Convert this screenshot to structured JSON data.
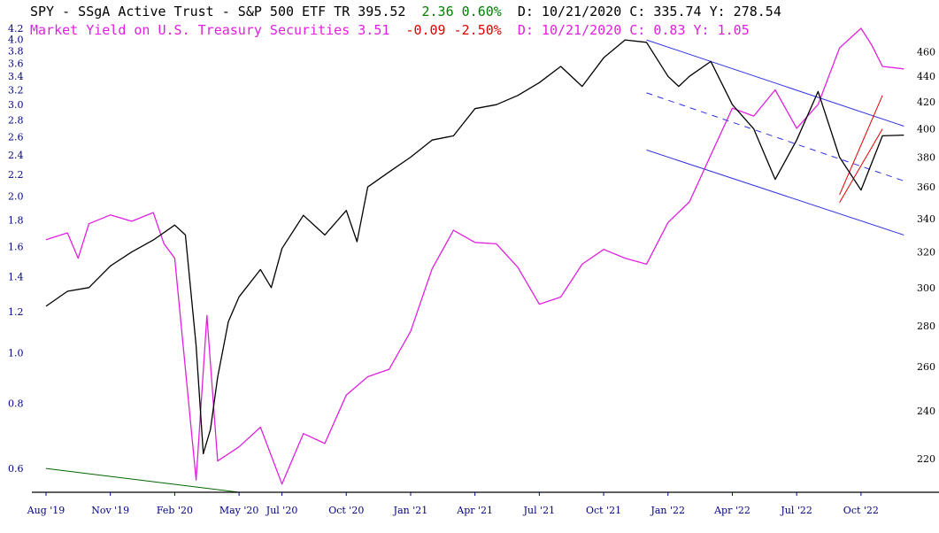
{
  "colors": {
    "spy": "#000000",
    "yield": "#e020e0",
    "gain": "#008000",
    "loss": "#e00000",
    "axis_text": "#000080",
    "channel": "#3030e0",
    "wedge": "#e00000",
    "trendline": "#006400",
    "doji": "#808080"
  },
  "header": {
    "line1": {
      "name": "SPY - SSgA Active Trust - S&P 500 ETF TR 395.52",
      "change": "2.36 0.60%",
      "rest": "D: 10/21/2020 C: 335.74 Y: 278.54"
    },
    "line2": {
      "name": "Market Yield on U.S. Treasury Securities 3.51",
      "change": "-0.09 -2.50%",
      "rest": "D: 10/21/2020 C: 0.83 Y: 1.05"
    }
  },
  "chart_data": {
    "type": "line",
    "x_tick_labels": [
      "Aug '19",
      "Nov '19",
      "Feb '20",
      "May '20",
      "Jul '20",
      "Oct '20",
      "Jan '21",
      "Apr '21",
      "Jul '21",
      "Oct '21",
      "Jan '22",
      "Apr '22",
      "Jul '22",
      "Oct '22"
    ],
    "left_axis": {
      "scale": "log",
      "ylim": [
        0.54,
        4.2
      ],
      "tick_labels": [
        "4.2",
        "4.0",
        "3.8",
        "3.6",
        "3.4",
        "3.2",
        "3.0",
        "2.8",
        "2.6",
        "2.4",
        "2.2",
        "2.0",
        "1.8",
        "1.6",
        "1.4",
        "1.2",
        "1.0",
        "0.8",
        "0.6"
      ]
    },
    "right_axis": {
      "scale": "log",
      "ylim": [
        207,
        480
      ],
      "tick_labels": [
        "460",
        "440",
        "420",
        "400",
        "380",
        "360",
        "340",
        "320",
        "300",
        "280",
        "260",
        "240",
        "220"
      ]
    },
    "series": [
      {
        "name": "SPY - SSgA Active Trust - S&P 500 ETF TR",
        "axis": "right",
        "points": [
          [
            "Aug '19",
            290
          ],
          [
            "Sep '19",
            298
          ],
          [
            "Oct '19",
            300
          ],
          [
            "Nov '19",
            312
          ],
          [
            "Dec '19",
            320
          ],
          [
            "Jan '20",
            327
          ],
          [
            "Feb '20",
            336
          ],
          [
            "Feb '20",
            330
          ],
          [
            "Mar '20",
            270
          ],
          [
            "Mar '20",
            222
          ],
          [
            "Mar '20",
            232
          ],
          [
            "Apr '20",
            255
          ],
          [
            "Apr '20",
            282
          ],
          [
            "May '20",
            295
          ],
          [
            "Jun '20",
            310
          ],
          [
            "Jun '20",
            300
          ],
          [
            "Jul '20",
            322
          ],
          [
            "Aug '20",
            342
          ],
          [
            "Sep '20",
            330
          ],
          [
            "Oct '20",
            345
          ],
          [
            "Oct '20",
            326
          ],
          [
            "Nov '20",
            360
          ],
          [
            "Dec '20",
            370
          ],
          [
            "Jan '21",
            380
          ],
          [
            "Feb '21",
            392
          ],
          [
            "Mar '21",
            395
          ],
          [
            "Apr '21",
            415
          ],
          [
            "May '21",
            418
          ],
          [
            "Jun '21",
            425
          ],
          [
            "Jul '21",
            435
          ],
          [
            "Aug '21",
            448
          ],
          [
            "Sep '21",
            432
          ],
          [
            "Oct '21",
            455
          ],
          [
            "Nov '21",
            470
          ],
          [
            "Dec '21",
            468
          ],
          [
            "Jan '22",
            440
          ],
          [
            "Jan '22",
            432
          ],
          [
            "Feb '22",
            440
          ],
          [
            "Mar '22",
            452
          ],
          [
            "Apr '22",
            418
          ],
          [
            "May '22",
            400
          ],
          [
            "Jun '22",
            365
          ],
          [
            "Jul '22",
            392
          ],
          [
            "Aug '22",
            428
          ],
          [
            "Sep '22",
            380
          ],
          [
            "Oct '22",
            358
          ],
          [
            "Nov '22",
            395
          ],
          [
            "Dec '22",
            395.52
          ]
        ]
      },
      {
        "name": "Market Yield on U.S. Treasury Securities",
        "axis": "left",
        "points": [
          [
            "Aug '19",
            1.65
          ],
          [
            "Sep '19",
            1.7
          ],
          [
            "Sep '19",
            1.52
          ],
          [
            "Oct '19",
            1.77
          ],
          [
            "Nov '19",
            1.84
          ],
          [
            "Dec '19",
            1.79
          ],
          [
            "Jan '20",
            1.86
          ],
          [
            "Jan '20",
            1.62
          ],
          [
            "Feb '20",
            1.52
          ],
          [
            "Mar '20",
            0.57
          ],
          [
            "Mar '20",
            1.18
          ],
          [
            "Apr '20",
            0.62
          ],
          [
            "May '20",
            0.66
          ],
          [
            "Jun '20",
            0.72
          ],
          [
            "Jul '20",
            0.56
          ],
          [
            "Aug '20",
            0.7
          ],
          [
            "Sep '20",
            0.67
          ],
          [
            "Oct '20",
            0.83
          ],
          [
            "Nov '20",
            0.9
          ],
          [
            "Dec '20",
            0.93
          ],
          [
            "Jan '21",
            1.1
          ],
          [
            "Feb '21",
            1.45
          ],
          [
            "Mar '21",
            1.72
          ],
          [
            "Apr '21",
            1.63
          ],
          [
            "May '21",
            1.62
          ],
          [
            "Jun '21",
            1.46
          ],
          [
            "Jul '21",
            1.24
          ],
          [
            "Aug '21",
            1.28
          ],
          [
            "Sep '21",
            1.48
          ],
          [
            "Oct '21",
            1.58
          ],
          [
            "Nov '21",
            1.52
          ],
          [
            "Dec '21",
            1.48
          ],
          [
            "Jan '22",
            1.78
          ],
          [
            "Feb '22",
            1.95
          ],
          [
            "Mar '22",
            2.4
          ],
          [
            "Apr '22",
            2.95
          ],
          [
            "May '22",
            2.85
          ],
          [
            "Jun '22",
            3.2
          ],
          [
            "Jul '22",
            2.7
          ],
          [
            "Aug '22",
            3.0
          ],
          [
            "Sep '22",
            3.85
          ],
          [
            "Oct '22",
            4.2
          ],
          [
            "Oct '22",
            3.9
          ],
          [
            "Nov '22",
            3.55
          ],
          [
            "Dec '22",
            3.51
          ]
        ]
      }
    ],
    "drawings": [
      {
        "kind": "channel",
        "style": "solid",
        "axis": "right",
        "from": [
          "Dec '21",
          470
        ],
        "to": [
          "Dec '22",
          402
        ]
      },
      {
        "kind": "channel",
        "style": "dashed",
        "axis": "right",
        "from": [
          "Dec '21",
          427
        ],
        "to": [
          "Dec '22",
          364
        ]
      },
      {
        "kind": "channel",
        "style": "solid",
        "axis": "right",
        "from": [
          "Dec '21",
          385
        ],
        "to": [
          "Dec '22",
          330
        ]
      },
      {
        "kind": "wedge",
        "style": "solid",
        "axis": "right",
        "from": [
          "Sep '22",
          355
        ],
        "to": [
          "Nov '22",
          425
        ]
      },
      {
        "kind": "wedge",
        "style": "solid",
        "axis": "right",
        "from": [
          "Sep '22",
          350
        ],
        "to": [
          "Nov '22",
          400
        ]
      },
      {
        "kind": "trendline",
        "style": "solid",
        "axis": "left",
        "from": [
          "Aug '19",
          0.6
        ],
        "to": [
          "May '20",
          0.54
        ]
      }
    ],
    "grid": false,
    "legend": "top-left"
  }
}
